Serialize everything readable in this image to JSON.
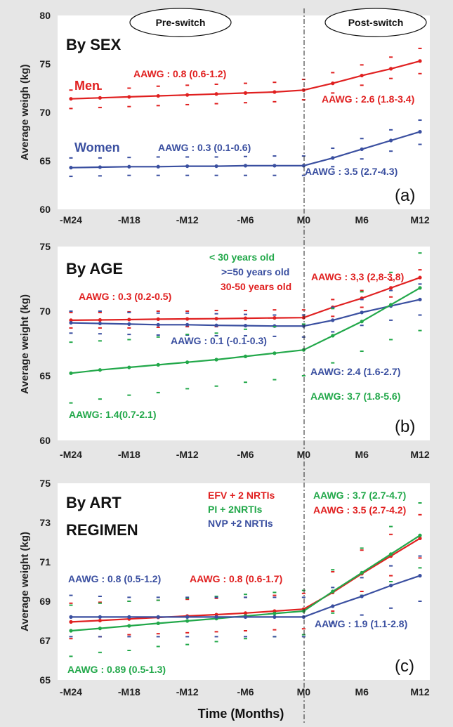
{
  "x_axis_title": "Time (Months)",
  "phase_labels": {
    "pre": "Pre-switch",
    "post": "Post-switch"
  },
  "x_ticks": [
    "-M24",
    "-M18",
    "-M12",
    "-M6",
    "M0",
    "M6",
    "M12"
  ],
  "chart_data": [
    {
      "type": "line",
      "panel": "(a)",
      "title": "By SEX",
      "ylabel": "Average weigh (kg)",
      "ylim": [
        60,
        80
      ],
      "yticks": [
        60,
        65,
        70,
        75,
        80
      ],
      "x": [
        -24,
        -21,
        -18,
        -15,
        -12,
        -9,
        -6,
        -3,
        0,
        3,
        6,
        9,
        12
      ],
      "series": [
        {
          "name": "Men",
          "color": "#e02020",
          "values": [
            71.4,
            71.5,
            71.6,
            71.7,
            71.8,
            71.9,
            72.0,
            72.1,
            72.3,
            73.0,
            73.8,
            74.5,
            75.3
          ],
          "lower": [
            70.4,
            70.5,
            70.6,
            70.7,
            70.8,
            70.9,
            71.0,
            71.1,
            71.3,
            72.0,
            72.8,
            73.5,
            74.0
          ],
          "upper": [
            72.3,
            72.4,
            72.5,
            72.7,
            72.8,
            72.9,
            73.0,
            73.1,
            73.4,
            74.1,
            74.9,
            75.7,
            76.6
          ]
        },
        {
          "name": "Women",
          "color": "#3a4fa0",
          "values": [
            64.3,
            64.35,
            64.4,
            64.4,
            64.45,
            64.45,
            64.5,
            64.5,
            64.5,
            65.3,
            66.2,
            67.1,
            68.0
          ],
          "lower": [
            63.4,
            63.45,
            63.5,
            63.5,
            63.5,
            63.5,
            63.5,
            63.5,
            63.5,
            64.4,
            65.2,
            66.0,
            66.7
          ],
          "upper": [
            65.3,
            65.3,
            65.35,
            65.4,
            65.4,
            65.4,
            65.45,
            65.5,
            65.5,
            66.3,
            67.3,
            68.2,
            69.2
          ]
        }
      ],
      "annotations": [
        {
          "text": "Men",
          "color": "#e02020"
        },
        {
          "text": "Women",
          "color": "#3a4fa0"
        },
        {
          "text": "AAWG : 0.8 (0.6-1.2)",
          "color": "#e02020"
        },
        {
          "text": "AAWG : 2.6 (1.8-3.4)",
          "color": "#e02020"
        },
        {
          "text": "AAWG : 0.3 (0.1-0.6)",
          "color": "#3a4fa0"
        },
        {
          "text": "AAWG : 3.5 (2.7-4.3)",
          "color": "#3a4fa0"
        }
      ]
    },
    {
      "type": "line",
      "panel": "(b)",
      "title": "By AGE",
      "ylabel": "Average weight (kg)",
      "ylim": [
        60,
        75
      ],
      "yticks": [
        60,
        65,
        70,
        75
      ],
      "x": [
        -24,
        -21,
        -18,
        -15,
        -12,
        -9,
        -6,
        -3,
        0,
        3,
        6,
        9,
        12
      ],
      "series": [
        {
          "name": "30-50 years old",
          "color": "#e02020",
          "values": [
            69.3,
            69.32,
            69.35,
            69.38,
            69.4,
            69.42,
            69.45,
            69.48,
            69.5,
            70.3,
            71.0,
            71.8,
            72.6
          ],
          "lower": [
            68.7,
            68.7,
            68.7,
            68.75,
            68.8,
            68.8,
            68.85,
            68.85,
            68.9,
            69.6,
            70.3,
            71.1,
            71.8
          ],
          "upper": [
            69.9,
            69.9,
            69.95,
            70.0,
            70.0,
            70.05,
            70.05,
            70.1,
            70.1,
            70.9,
            71.6,
            72.4,
            73.2
          ]
        },
        {
          "name": ">=50 years old",
          "color": "#3a4fa0",
          "values": [
            69.1,
            69.05,
            69.0,
            68.95,
            68.95,
            68.9,
            68.88,
            68.85,
            68.85,
            69.3,
            69.9,
            70.4,
            70.9
          ],
          "lower": [
            68.3,
            68.25,
            68.2,
            68.15,
            68.15,
            68.1,
            68.1,
            68.05,
            68.0,
            68.4,
            68.9,
            69.3,
            69.7
          ],
          "upper": [
            70.0,
            70.0,
            69.9,
            69.85,
            69.85,
            69.8,
            69.75,
            69.7,
            69.7,
            70.3,
            70.9,
            71.6,
            72.1
          ]
        },
        {
          "name": "< 30 years old",
          "color": "#22a84a",
          "values": [
            65.2,
            65.45,
            65.65,
            65.85,
            66.05,
            66.25,
            66.5,
            66.75,
            67.0,
            68.1,
            69.2,
            70.5,
            71.8
          ],
          "lower": [
            62.9,
            63.2,
            63.5,
            63.7,
            64.0,
            64.2,
            64.5,
            64.7,
            65.0,
            66.0,
            66.9,
            67.8,
            68.5
          ],
          "upper": [
            67.6,
            67.7,
            67.8,
            68.0,
            68.2,
            68.3,
            68.6,
            68.8,
            69.0,
            70.2,
            71.5,
            73.0,
            74.5
          ]
        }
      ],
      "annotations": [
        {
          "text": "< 30 years old",
          "color": "#22a84a"
        },
        {
          "text": ">=50 years old",
          "color": "#3a4fa0"
        },
        {
          "text": "30-50 years old",
          "color": "#e02020"
        },
        {
          "text": "AAWG : 0.3 (0.2-0.5)",
          "color": "#e02020"
        },
        {
          "text": "AAWG : 3,3 (2,8-3,8)",
          "color": "#e02020"
        },
        {
          "text": "AAWG : 0.1 (-0.1-0.3)",
          "color": "#3a4fa0"
        },
        {
          "text": "AAWG: 2.4 (1.6-2.7)",
          "color": "#3a4fa0"
        },
        {
          "text": "AAWG: 3.7 (1.8-5.6)",
          "color": "#22a84a"
        },
        {
          "text": "AAWG: 1.4(0.7-2.1)",
          "color": "#22a84a"
        }
      ]
    },
    {
      "type": "line",
      "panel": "(c)",
      "title_lines": [
        "By ART",
        "REGIMEN"
      ],
      "ylabel": "Average weight (kg)",
      "ylim": [
        65,
        75
      ],
      "yticks": [
        65,
        67,
        69,
        71,
        73,
        75
      ],
      "x": [
        -24,
        -21,
        -18,
        -15,
        -12,
        -9,
        -6,
        -3,
        0,
        3,
        6,
        9,
        12
      ],
      "series": [
        {
          "name": "EFV + 2 NRTIs",
          "color": "#e02020",
          "values": [
            67.95,
            68.02,
            68.1,
            68.18,
            68.25,
            68.32,
            68.4,
            68.5,
            68.6,
            69.45,
            70.4,
            71.3,
            72.2
          ],
          "lower": [
            67.1,
            67.2,
            67.3,
            67.35,
            67.4,
            67.45,
            67.5,
            67.55,
            67.6,
            68.5,
            69.5,
            70.3,
            71.2
          ],
          "upper": [
            68.9,
            68.95,
            69.0,
            69.05,
            69.1,
            69.15,
            69.2,
            69.3,
            69.4,
            70.5,
            71.6,
            72.4,
            73.4
          ]
        },
        {
          "name": "PI + 2NRTIs",
          "color": "#22a84a",
          "values": [
            67.5,
            67.62,
            67.75,
            67.88,
            68.0,
            68.12,
            68.25,
            68.38,
            68.5,
            69.5,
            70.45,
            71.4,
            72.35
          ],
          "lower": [
            66.2,
            66.4,
            66.5,
            66.7,
            66.8,
            66.95,
            67.1,
            67.2,
            67.3,
            68.4,
            69.3,
            70.0,
            70.7
          ],
          "upper": [
            68.8,
            68.9,
            69.0,
            69.05,
            69.15,
            69.25,
            69.35,
            69.45,
            69.55,
            70.6,
            71.7,
            72.8,
            74.0
          ]
        },
        {
          "name": "NVP +2 NRTIs",
          "color": "#3a4fa0",
          "values": [
            68.2,
            68.2,
            68.2,
            68.2,
            68.2,
            68.2,
            68.2,
            68.2,
            68.2,
            68.75,
            69.25,
            69.8,
            70.3
          ],
          "lower": [
            67.2,
            67.2,
            67.2,
            67.2,
            67.2,
            67.2,
            67.2,
            67.2,
            67.2,
            67.9,
            68.3,
            68.65,
            69.0
          ],
          "upper": [
            69.3,
            69.25,
            69.2,
            69.2,
            69.2,
            69.2,
            69.2,
            69.2,
            69.2,
            69.7,
            70.2,
            70.8,
            71.3
          ]
        }
      ],
      "annotations": [
        {
          "text": "EFV + 2 NRTIs",
          "color": "#e02020"
        },
        {
          "text": "PI + 2NRTIs",
          "color": "#22a84a"
        },
        {
          "text": "NVP +2 NRTIs",
          "color": "#3a4fa0"
        },
        {
          "text": "AAWG : 3.7 (2.7-4.7)",
          "color": "#22a84a"
        },
        {
          "text": "AAWG : 3.5 (2.7-4.2)",
          "color": "#e02020"
        },
        {
          "text": "AAWG : 0.8 (0.5-1.2)",
          "color": "#3a4fa0"
        },
        {
          "text": "AAWG : 0.8 (0.6-1.7)",
          "color": "#e02020"
        },
        {
          "text": "AAWG : 1.9 (1.1-2.8)",
          "color": "#3a4fa0"
        },
        {
          "text": "AAWG : 0.89 (0.5-1.3)",
          "color": "#22a84a"
        }
      ]
    }
  ]
}
